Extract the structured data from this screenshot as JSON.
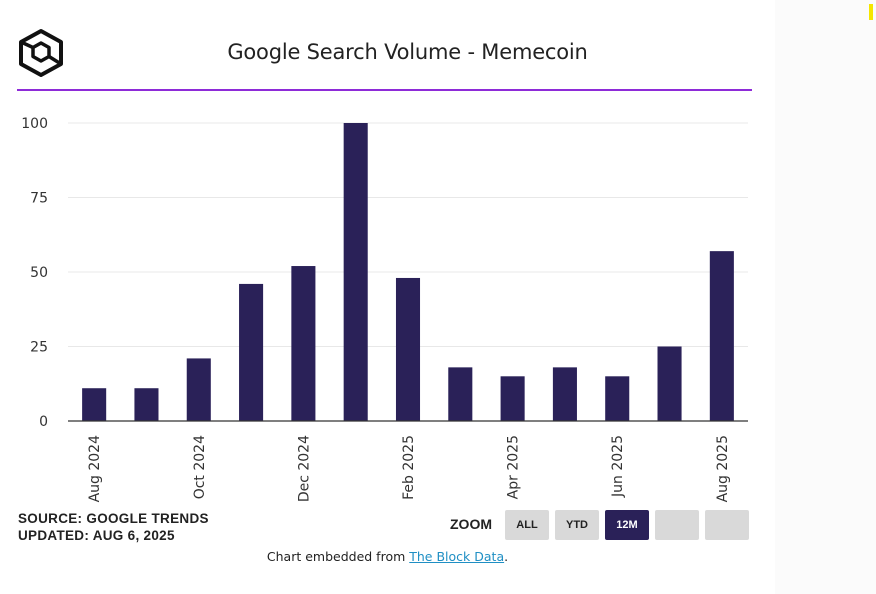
{
  "header": {
    "title": "Google Search Volume - Memecoin",
    "logo_icon": "the-block-cube-icon"
  },
  "colors": {
    "bar": "#2a2158",
    "title_rule": "#8e2bd8",
    "active_button": "#2a2158",
    "inactive_button": "#d9d9d9",
    "link": "#1f8fc4"
  },
  "chart_data": {
    "type": "bar",
    "title": "Google Search Volume - Memecoin",
    "xlabel": "",
    "ylabel": "",
    "categories": [
      "Aug 2024",
      "Sep 2024",
      "Oct 2024",
      "Nov 2024",
      "Dec 2024",
      "Jan 2025",
      "Feb 2025",
      "Mar 2025",
      "Apr 2025",
      "May 2025",
      "Jun 2025",
      "Jul 2025",
      "Aug 2025"
    ],
    "x_tick_labels": [
      "Aug 2024",
      "",
      "Oct 2024",
      "",
      "Dec 2024",
      "",
      "Feb 2025",
      "",
      "Apr 2025",
      "",
      "Jun 2025",
      "",
      "Aug 2025"
    ],
    "values": [
      11,
      11,
      21,
      46,
      52,
      100,
      48,
      18,
      15,
      18,
      15,
      25,
      57
    ],
    "ylim": [
      0,
      100
    ],
    "y_ticks": [
      0,
      25,
      50,
      75,
      100
    ],
    "grid": true,
    "legend": "none"
  },
  "footer": {
    "source_line": "SOURCE: GOOGLE TRENDS",
    "updated_line": "UPDATED: AUG 6, 2025",
    "zoom_label": "ZOOM",
    "zoom_buttons": [
      "ALL",
      "YTD",
      "12M",
      "",
      ""
    ],
    "zoom_selected": "12M",
    "embed_prefix": "Chart embedded from ",
    "embed_link": "The Block Data",
    "embed_suffix": "."
  }
}
